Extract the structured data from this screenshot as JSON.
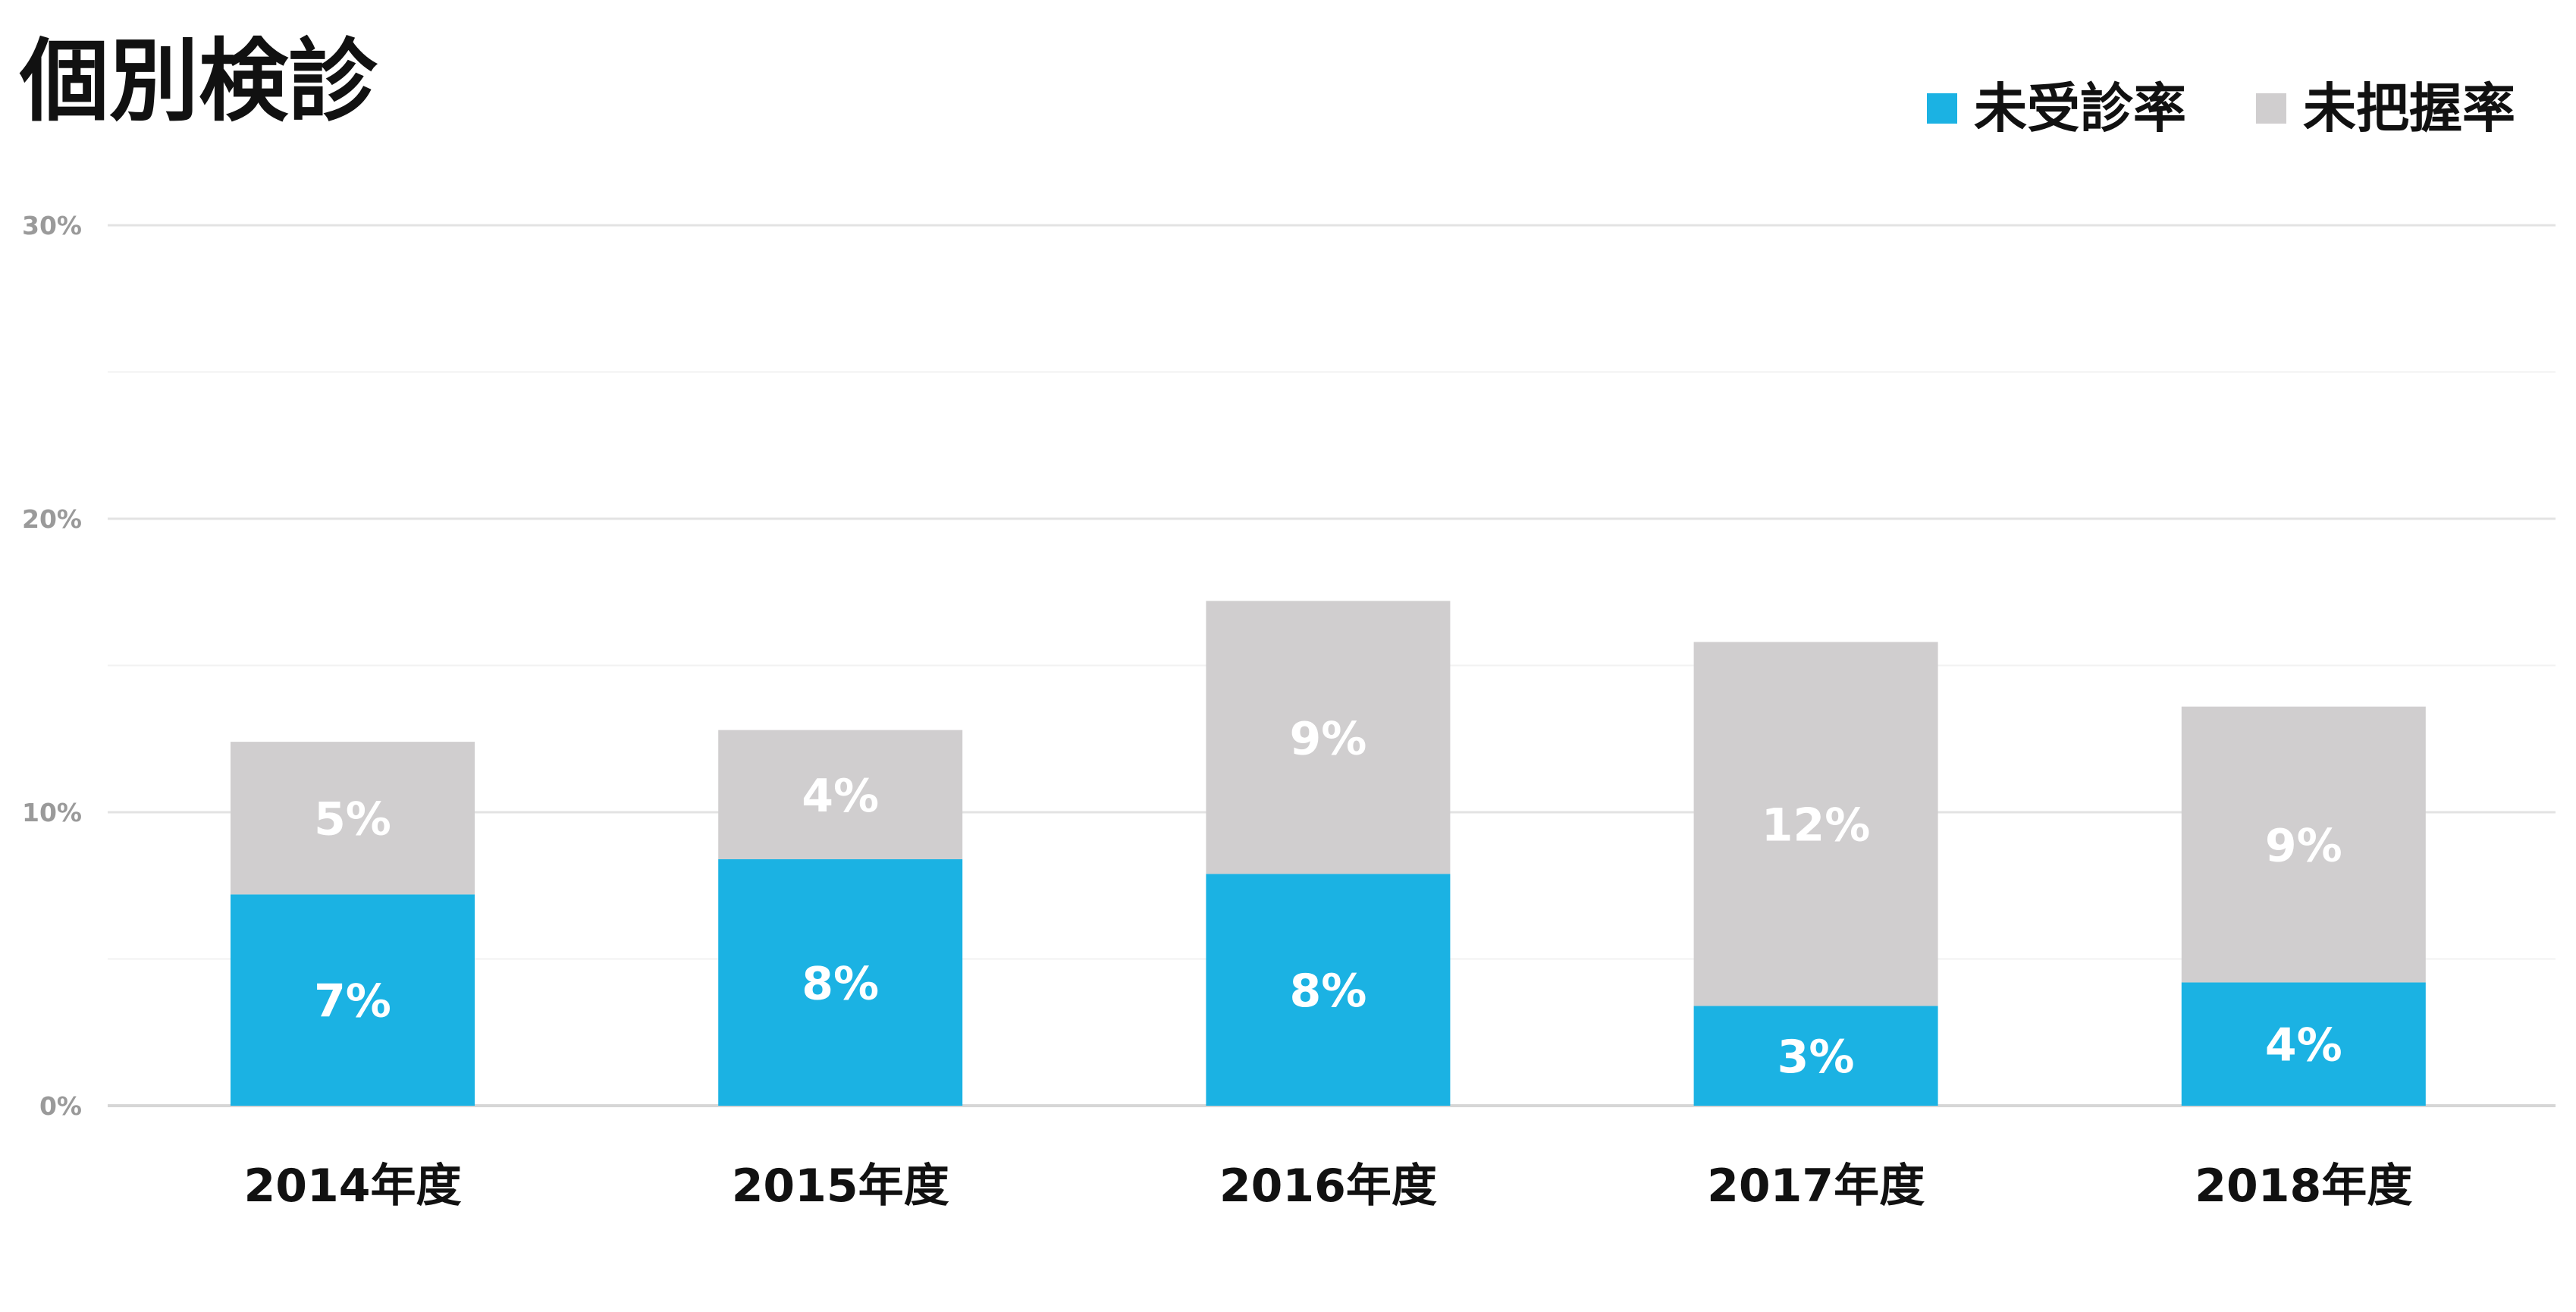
{
  "chart_data": {
    "type": "bar",
    "stacked": true,
    "title": "個別検診",
    "categories": [
      "2014年度",
      "2015年度",
      "2016年度",
      "2017年度",
      "2018年度"
    ],
    "series": [
      {
        "name": "未受診率",
        "color": "#1BB2E3",
        "values": [
          7.2,
          8.4,
          7.9,
          3.4,
          4.2
        ],
        "labels": [
          "7%",
          "8%",
          "8%",
          "3%",
          "4%"
        ]
      },
      {
        "name": "未把握率",
        "color": "#D0CECF",
        "values": [
          5.2,
          4.4,
          9.3,
          12.4,
          9.4
        ],
        "labels": [
          "5%",
          "4%",
          "9%",
          "12%",
          "9%"
        ]
      }
    ],
    "ylim": [
      0,
      30
    ],
    "yticks": [
      0,
      10,
      20,
      30
    ],
    "ytick_labels": [
      "0%",
      "10%",
      "20%",
      "30%"
    ],
    "minor_gridlines": [
      5,
      15,
      25
    ],
    "grid": true,
    "legend_position": "top-right",
    "xlabel": "",
    "ylabel": ""
  }
}
